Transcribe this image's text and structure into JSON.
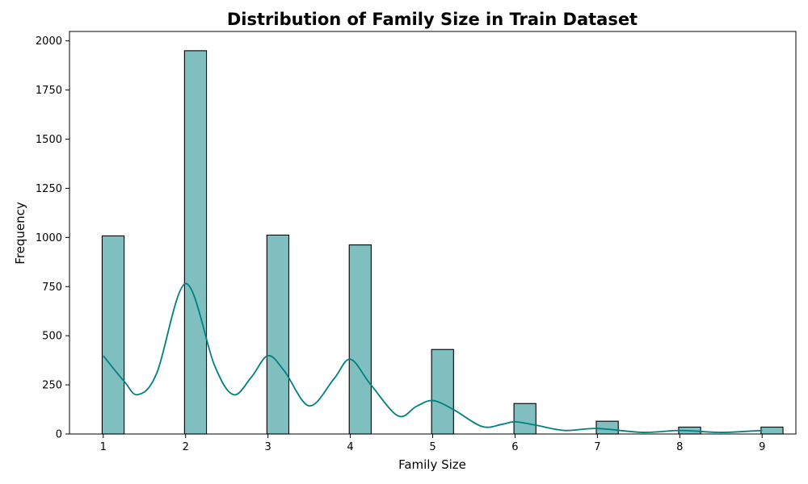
{
  "chart_data": {
    "type": "bar",
    "title": "Distribution of Family  Size in Train Dataset",
    "xlabel": "Family  Size",
    "ylabel": "Frequency",
    "xlim": [
      0.59,
      9.41
    ],
    "ylim": [
      0,
      2048
    ],
    "x_ticks": [
      1,
      2,
      3,
      4,
      5,
      6,
      7,
      8,
      9
    ],
    "y_ticks": [
      0,
      250,
      500,
      750,
      1000,
      1250,
      1500,
      1750,
      2000
    ],
    "bar_width": 0.2667,
    "bars": [
      {
        "x": 1,
        "value": 1008
      },
      {
        "x": 2,
        "value": 1950
      },
      {
        "x": 3,
        "value": 1012
      },
      {
        "x": 4,
        "value": 962
      },
      {
        "x": 5,
        "value": 430
      },
      {
        "x": 6,
        "value": 155
      },
      {
        "x": 7,
        "value": 65
      },
      {
        "x": 8,
        "value": 35
      },
      {
        "x": 9,
        "value": 35
      }
    ],
    "kde": {
      "x": [
        1.0,
        1.25,
        1.42,
        1.65,
        2.0,
        2.35,
        2.58,
        2.8,
        3.0,
        3.2,
        3.5,
        3.8,
        4.0,
        4.25,
        4.58,
        4.8,
        5.0,
        5.25,
        5.6,
        5.85,
        6.0,
        6.25,
        6.6,
        7.0,
        7.55,
        8.0,
        8.5,
        9.0
      ],
      "y": [
        398,
        270,
        200,
        310,
        765,
        350,
        200,
        290,
        398,
        320,
        143,
        280,
        380,
        250,
        92,
        140,
        170,
        125,
        38,
        50,
        62,
        45,
        18,
        28,
        8,
        18,
        8,
        18
      ]
    },
    "colors": {
      "bar_fill": "#80bfbf",
      "bar_edge": "#000000",
      "kde_line": "#008080"
    },
    "grid": false,
    "legend": "none"
  }
}
